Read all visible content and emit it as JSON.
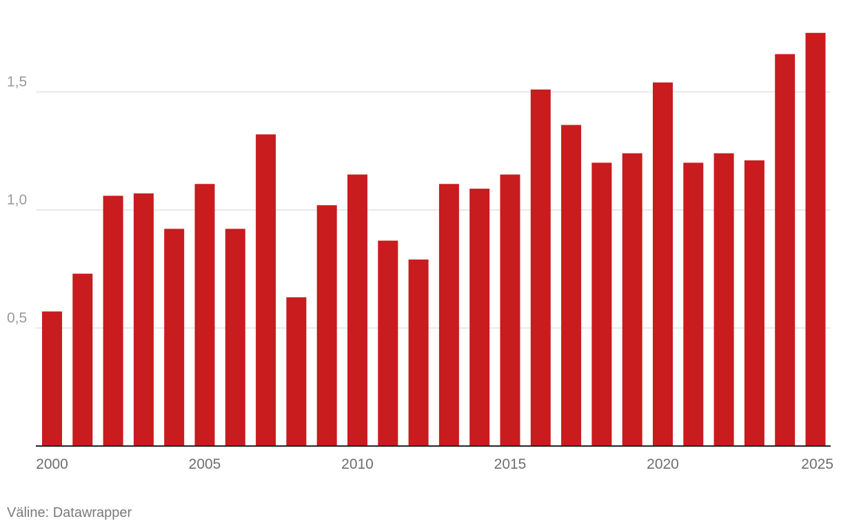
{
  "chart_data": {
    "type": "bar",
    "categories": [
      "2000",
      "2001",
      "2002",
      "2003",
      "2004",
      "2005",
      "2006",
      "2007",
      "2008",
      "2009",
      "2010",
      "2011",
      "2012",
      "2013",
      "2014",
      "2015",
      "2016",
      "2017",
      "2018",
      "2019",
      "2020",
      "2021",
      "2022",
      "2023",
      "2024",
      "2025"
    ],
    "values": [
      0.57,
      0.73,
      1.06,
      1.07,
      0.92,
      1.11,
      0.92,
      1.32,
      0.63,
      1.02,
      1.15,
      0.87,
      0.79,
      1.11,
      1.09,
      1.15,
      1.51,
      1.36,
      1.2,
      1.24,
      1.54,
      1.2,
      1.24,
      1.21,
      1.66,
      1.75
    ],
    "x_tick_labels": [
      "2000",
      "2005",
      "2010",
      "2015",
      "2020",
      "2025"
    ],
    "y_ticks": [
      0.5,
      1.0,
      1.5
    ],
    "y_tick_labels": [
      "0,5",
      "1,0",
      "1,5"
    ],
    "ylim": [
      0,
      1.8
    ],
    "grid": true,
    "title": "",
    "xlabel": "",
    "ylabel": "",
    "bar_color": "#c81c1e",
    "grid_color": "#e2e2e2",
    "axis_color": "#222222",
    "tick_label_color": "#9a9a9a",
    "x_label_color": "#6e6e6e"
  },
  "footer": {
    "source": "Väline: Datawrapper"
  }
}
